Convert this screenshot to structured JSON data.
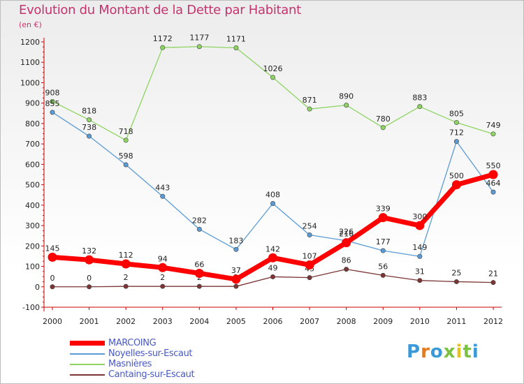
{
  "title": "Evolution du Montant de la Dette par Habitant",
  "subtitle": "(en €)",
  "logo": {
    "text": "Proxiti",
    "letter_colors": [
      "#3a9ad9",
      "#e27a1f",
      "#3a9ad9",
      "#7cc242",
      "#e5c21d",
      "#7cc242",
      "#3a9ad9"
    ]
  },
  "chart_data": {
    "type": "line",
    "title": "Evolution du Montant de la Dette par Habitant",
    "ylabel": "(en €)",
    "xlabel": "",
    "ylim": [
      -100,
      1200
    ],
    "yticks": [
      -100,
      0,
      100,
      200,
      300,
      400,
      500,
      600,
      700,
      800,
      900,
      1000,
      1100,
      1200
    ],
    "x": [
      "2000",
      "2001",
      "2002",
      "2003",
      "2004",
      "2005",
      "2006",
      "2007",
      "2008",
      "2009",
      "2010",
      "2011",
      "2012"
    ],
    "grid": false,
    "legend_position": "bottom-left",
    "series": [
      {
        "name": "Masnières",
        "color": "#8ed462",
        "values": [
          908,
          818,
          718,
          1172,
          1177,
          1171,
          1026,
          871,
          890,
          780,
          883,
          805,
          749
        ]
      },
      {
        "name": "Noyelles-sur-Escaut",
        "color": "#5a9bd5",
        "values": [
          855,
          738,
          598,
          443,
          282,
          183,
          408,
          254,
          226,
          177,
          149,
          712,
          464
        ]
      },
      {
        "name": "Cantaing-sur-Escaut",
        "color": "#7b3535",
        "values": [
          0,
          0,
          2,
          2,
          2,
          2,
          49,
          45,
          86,
          56,
          31,
          25,
          21
        ]
      },
      {
        "name": "MARCOING",
        "color": "#ff0000",
        "values": [
          145,
          132,
          112,
          94,
          66,
          37,
          142,
          107,
          216,
          339,
          300,
          500,
          550
        ]
      }
    ],
    "legend_order": [
      "MARCOING",
      "Noyelles-sur-Escaut",
      "Masnières",
      "Cantaing-sur-Escaut"
    ]
  }
}
